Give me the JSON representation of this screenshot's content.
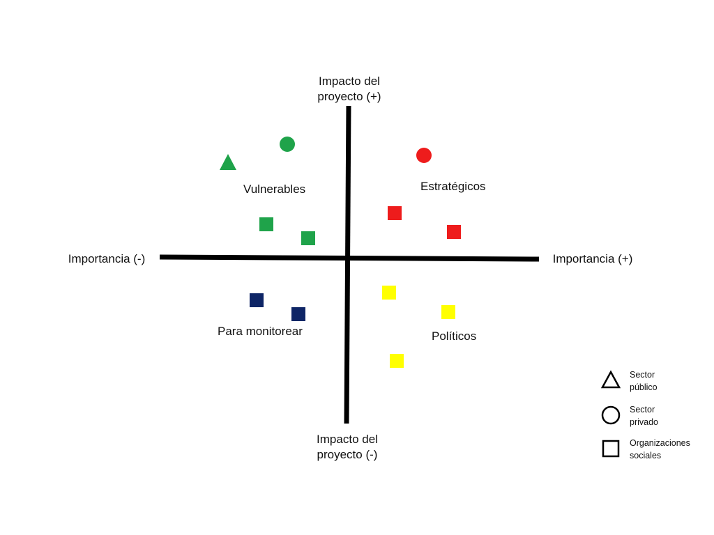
{
  "axes": {
    "top": "Impacto del\nproyecto (+)",
    "bottom": "Impacto del\nproyecto (-)",
    "left": "Importancia (-)",
    "right": "Importancia (+)"
  },
  "quadrants": {
    "top_left": "Vulnerables",
    "top_right": "Estratégicos",
    "bottom_left": "Para monitorear",
    "bottom_right": "Políticos"
  },
  "legend": [
    {
      "label": "Sector\npúblico",
      "shape": "triangle-outline-icon"
    },
    {
      "label": "Sector\nprivado",
      "shape": "circle-outline-icon"
    },
    {
      "label": "Organizaciones\nsociales",
      "shape": "square-outline-icon"
    }
  ],
  "colors": {
    "vulnerables": "#1fa34a",
    "estrategicos": "#ee1c1c",
    "para_monitorear": "#0e2566",
    "politicos": "#ffff00",
    "axis": "#000000"
  }
}
